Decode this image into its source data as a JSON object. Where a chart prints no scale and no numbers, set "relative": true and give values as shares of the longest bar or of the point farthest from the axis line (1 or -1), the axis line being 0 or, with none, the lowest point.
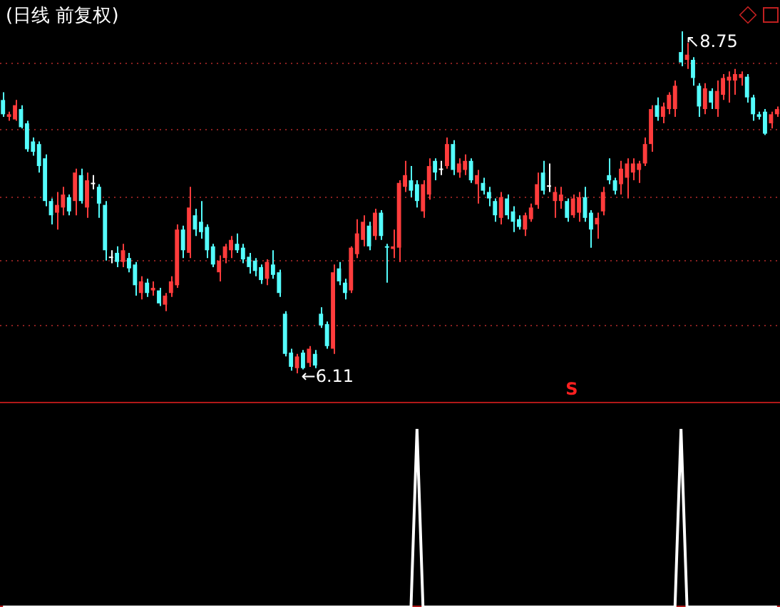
{
  "chart_data": [
    {
      "type": "candlestick",
      "title": "(日线 前复权)",
      "categories": [
        null,
        null,
        null,
        null,
        null,
        null,
        null,
        null,
        null,
        null,
        null,
        null,
        null,
        null,
        null,
        null,
        null,
        null,
        null,
        null,
        null,
        null,
        null,
        null,
        null,
        null,
        null,
        null,
        null,
        null,
        null,
        null,
        null,
        null,
        null,
        null,
        null,
        null,
        null,
        null,
        null,
        null,
        null,
        null,
        null,
        null,
        null,
        null,
        null,
        null,
        null,
        null,
        null,
        null,
        null,
        null,
        null,
        null,
        null,
        null,
        null,
        null,
        null,
        null,
        null,
        null,
        null,
        null,
        null,
        null,
        null,
        null,
        null,
        null,
        null,
        null,
        null,
        null,
        null,
        null,
        null,
        null,
        null,
        null,
        null,
        null,
        null,
        null,
        null,
        null,
        null,
        null,
        null,
        null,
        null,
        null,
        null,
        null,
        null,
        null,
        null,
        null,
        null,
        null,
        null,
        null,
        null,
        null,
        null,
        null,
        null,
        null,
        null,
        null,
        null,
        null,
        null,
        null,
        null,
        null,
        null,
        null,
        null,
        null,
        null,
        null,
        null,
        null,
        null,
        null
      ],
      "ohlc": [
        [
          8.22,
          8.28,
          8.09,
          8.11
        ],
        [
          8.09,
          8.13,
          8.06,
          8.11
        ],
        [
          8.07,
          8.22,
          8.06,
          8.18
        ],
        [
          8.15,
          8.18,
          8.0,
          8.01
        ],
        [
          8.04,
          8.06,
          7.82,
          7.84
        ],
        [
          7.9,
          7.93,
          7.79,
          7.82
        ],
        [
          7.88,
          7.9,
          7.66,
          7.71
        ],
        [
          7.77,
          7.8,
          7.4,
          7.44
        ],
        [
          7.44,
          7.46,
          7.26,
          7.33
        ],
        [
          7.35,
          7.51,
          7.22,
          7.41
        ],
        [
          7.39,
          7.55,
          7.33,
          7.49
        ],
        [
          7.47,
          7.49,
          7.33,
          7.36
        ],
        [
          7.44,
          7.69,
          7.33,
          7.66
        ],
        [
          7.64,
          7.69,
          7.42,
          7.44
        ],
        [
          7.39,
          7.66,
          7.31,
          7.6
        ],
        [
          7.57,
          7.64,
          7.53,
          7.57
        ],
        [
          7.55,
          7.57,
          7.31,
          7.42
        ],
        [
          7.41,
          7.44,
          6.98,
          7.06
        ],
        [
          7.0,
          7.06,
          6.96,
          7.0
        ],
        [
          7.04,
          7.09,
          6.93,
          6.97
        ],
        [
          6.97,
          7.11,
          6.93,
          7.06
        ],
        [
          7.0,
          7.04,
          6.89,
          6.92
        ],
        [
          6.95,
          6.97,
          6.71,
          6.79
        ],
        [
          6.73,
          6.86,
          6.68,
          6.82
        ],
        [
          6.81,
          6.84,
          6.7,
          6.73
        ],
        [
          6.75,
          6.82,
          6.71,
          6.77
        ],
        [
          6.75,
          6.77,
          6.63,
          6.65
        ],
        [
          6.64,
          6.73,
          6.59,
          6.71
        ],
        [
          6.73,
          6.86,
          6.7,
          6.82
        ],
        [
          6.79,
          7.26,
          6.77,
          7.22
        ],
        [
          7.22,
          7.25,
          7.0,
          7.06
        ],
        [
          7.04,
          7.55,
          7.0,
          7.39
        ],
        [
          7.33,
          7.38,
          7.17,
          7.22
        ],
        [
          7.28,
          7.44,
          7.15,
          7.2
        ],
        [
          7.24,
          7.26,
          7.0,
          7.06
        ],
        [
          7.09,
          7.11,
          6.93,
          6.95
        ],
        [
          6.89,
          7.02,
          6.82,
          6.98
        ],
        [
          7.0,
          7.11,
          6.96,
          7.09
        ],
        [
          7.06,
          7.17,
          7.0,
          7.14
        ],
        [
          7.11,
          7.19,
          7.04,
          7.06
        ],
        [
          7.08,
          7.11,
          6.96,
          6.99
        ],
        [
          7.01,
          7.04,
          6.88,
          6.93
        ],
        [
          6.98,
          7.0,
          6.86,
          6.9
        ],
        [
          6.93,
          6.95,
          6.8,
          6.83
        ],
        [
          6.84,
          6.99,
          6.79,
          6.97
        ],
        [
          6.95,
          7.06,
          6.84,
          6.87
        ],
        [
          6.89,
          6.91,
          6.7,
          6.73
        ],
        [
          6.57,
          6.59,
          6.24,
          6.26
        ],
        [
          6.27,
          6.3,
          6.13,
          6.16
        ],
        [
          6.15,
          6.26,
          6.11,
          6.24
        ],
        [
          6.27,
          6.29,
          6.14,
          6.15
        ],
        [
          6.19,
          6.32,
          6.16,
          6.3
        ],
        [
          6.26,
          6.29,
          6.15,
          6.17
        ],
        [
          6.57,
          6.62,
          6.46,
          6.48
        ],
        [
          6.49,
          6.51,
          6.3,
          6.32
        ],
        [
          6.3,
          6.95,
          6.26,
          6.89
        ],
        [
          6.92,
          6.97,
          6.79,
          6.82
        ],
        [
          6.81,
          6.84,
          6.68,
          6.73
        ],
        [
          6.75,
          7.09,
          6.73,
          7.08
        ],
        [
          7.03,
          7.3,
          7.0,
          7.19
        ],
        [
          7.14,
          7.33,
          7.09,
          7.28
        ],
        [
          7.25,
          7.28,
          7.06,
          7.09
        ],
        [
          7.17,
          7.38,
          7.14,
          7.35
        ],
        [
          7.35,
          7.37,
          7.14,
          7.17
        ],
        [
          7.09,
          7.11,
          6.81,
          7.08
        ],
        [
          7.07,
          7.22,
          7.0,
          7.09
        ],
        [
          7.08,
          7.6,
          6.97,
          7.58
        ],
        [
          7.55,
          7.75,
          7.51,
          7.64
        ],
        [
          7.6,
          7.71,
          7.47,
          7.52
        ],
        [
          7.57,
          7.6,
          7.39,
          7.44
        ],
        [
          7.36,
          7.6,
          7.31,
          7.57
        ],
        [
          7.49,
          7.77,
          7.45,
          7.71
        ],
        [
          7.75,
          7.77,
          7.6,
          7.66
        ],
        [
          7.68,
          7.75,
          7.64,
          7.68
        ],
        [
          7.71,
          7.93,
          7.69,
          7.88
        ],
        [
          7.88,
          7.91,
          7.64,
          7.68
        ],
        [
          7.66,
          7.77,
          7.62,
          7.73
        ],
        [
          7.68,
          7.8,
          7.64,
          7.75
        ],
        [
          7.75,
          7.77,
          7.58,
          7.6
        ],
        [
          7.57,
          7.68,
          7.42,
          7.64
        ],
        [
          7.58,
          7.62,
          7.49,
          7.52
        ],
        [
          7.51,
          7.55,
          7.4,
          7.46
        ],
        [
          7.44,
          7.46,
          7.28,
          7.33
        ],
        [
          7.31,
          7.51,
          7.26,
          7.47
        ],
        [
          7.46,
          7.49,
          7.3,
          7.33
        ],
        [
          7.36,
          7.4,
          7.2,
          7.28
        ],
        [
          7.3,
          7.33,
          7.22,
          7.24
        ],
        [
          7.22,
          7.35,
          7.17,
          7.33
        ],
        [
          7.3,
          7.42,
          7.28,
          7.39
        ],
        [
          7.41,
          7.66,
          7.38,
          7.57
        ],
        [
          7.66,
          7.75,
          7.49,
          7.52
        ],
        [
          7.55,
          7.73,
          7.51,
          7.55
        ],
        [
          7.44,
          7.55,
          7.31,
          7.51
        ],
        [
          7.44,
          7.55,
          7.38,
          7.49
        ],
        [
          7.44,
          7.46,
          7.28,
          7.31
        ],
        [
          7.33,
          7.49,
          7.31,
          7.46
        ],
        [
          7.35,
          7.51,
          7.28,
          7.47
        ],
        [
          7.47,
          7.55,
          7.28,
          7.31
        ],
        [
          7.35,
          7.37,
          7.08,
          7.22
        ],
        [
          7.26,
          7.35,
          7.15,
          7.31
        ],
        [
          7.36,
          7.55,
          7.33,
          7.51
        ],
        [
          7.64,
          7.77,
          7.57,
          7.6
        ],
        [
          7.6,
          7.62,
          7.49,
          7.52
        ],
        [
          7.57,
          7.75,
          7.49,
          7.69
        ],
        [
          7.62,
          7.77,
          7.46,
          7.73
        ],
        [
          7.66,
          7.77,
          7.6,
          7.73
        ],
        [
          7.68,
          7.75,
          7.58,
          7.73
        ],
        [
          7.73,
          7.93,
          7.71,
          7.88
        ],
        [
          7.88,
          8.18,
          7.82,
          8.15
        ],
        [
          8.18,
          8.24,
          8.06,
          8.09
        ],
        [
          8.09,
          8.2,
          8.04,
          8.17
        ],
        [
          8.15,
          8.28,
          8.11,
          8.26
        ],
        [
          8.15,
          8.37,
          8.09,
          8.33
        ],
        [
          8.59,
          8.75,
          8.48,
          8.51
        ],
        [
          8.53,
          8.66,
          8.46,
          8.57
        ],
        [
          8.53,
          8.55,
          8.33,
          8.39
        ],
        [
          8.33,
          8.35,
          8.09,
          8.17
        ],
        [
          8.15,
          8.35,
          8.11,
          8.31
        ],
        [
          8.29,
          8.31,
          8.15,
          8.2
        ],
        [
          8.15,
          8.37,
          8.09,
          8.29
        ],
        [
          8.26,
          8.42,
          8.22,
          8.39
        ],
        [
          8.37,
          8.44,
          8.2,
          8.4
        ],
        [
          8.37,
          8.46,
          8.26,
          8.42
        ],
        [
          8.39,
          8.44,
          8.33,
          8.42
        ],
        [
          8.4,
          8.42,
          8.2,
          8.24
        ],
        [
          8.24,
          8.26,
          8.06,
          8.11
        ],
        [
          8.11,
          8.13,
          8.07,
          8.09
        ],
        [
          8.13,
          8.15,
          7.95,
          7.96
        ],
        [
          8.04,
          8.13,
          8.0,
          8.11
        ],
        [
          8.11,
          8.17,
          8.09,
          8.15
        ]
      ],
      "colors": [
        "#54fcfc",
        "#ff3c3c",
        "#ff3c3c",
        "#54fcfc",
        "#54fcfc",
        "#54fcfc",
        "#54fcfc",
        "#54fcfc",
        "#54fcfc",
        "#ff3c3c",
        "#ff3c3c",
        "#54fcfc",
        "#ff3c3c",
        "#54fcfc",
        "#ff3c3c",
        "#ffffff",
        "#54fcfc",
        "#54fcfc",
        "#ffffff",
        "#54fcfc",
        "#ff3c3c",
        "#54fcfc",
        "#54fcfc",
        "#ff3c3c",
        "#54fcfc",
        "#ff3c3c",
        "#54fcfc",
        "#ff3c3c",
        "#ff3c3c",
        "#ff3c3c",
        "#54fcfc",
        "#ff3c3c",
        "#54fcfc",
        "#54fcfc",
        "#54fcfc",
        "#54fcfc",
        "#ff3c3c",
        "#ff3c3c",
        "#ff3c3c",
        "#54fcfc",
        "#54fcfc",
        "#54fcfc",
        "#54fcfc",
        "#54fcfc",
        "#ff3c3c",
        "#54fcfc",
        "#54fcfc",
        "#54fcfc",
        "#54fcfc",
        "#ff3c3c",
        "#54fcfc",
        "#ff3c3c",
        "#54fcfc",
        "#54fcfc",
        "#54fcfc",
        "#ff3c3c",
        "#54fcfc",
        "#54fcfc",
        "#ff3c3c",
        "#ff3c3c",
        "#ff3c3c",
        "#54fcfc",
        "#ff3c3c",
        "#54fcfc",
        "#54fcfc",
        "#ff3c3c",
        "#ff3c3c",
        "#ff3c3c",
        "#54fcfc",
        "#54fcfc",
        "#ff3c3c",
        "#ff3c3c",
        "#54fcfc",
        "#ffffff",
        "#ff3c3c",
        "#54fcfc",
        "#ff3c3c",
        "#ff3c3c",
        "#54fcfc",
        "#ff3c3c",
        "#54fcfc",
        "#54fcfc",
        "#54fcfc",
        "#ff3c3c",
        "#54fcfc",
        "#54fcfc",
        "#54fcfc",
        "#ff3c3c",
        "#ff3c3c",
        "#ff3c3c",
        "#54fcfc",
        "#ffffff",
        "#ff3c3c",
        "#ff3c3c",
        "#54fcfc",
        "#ff3c3c",
        "#ff3c3c",
        "#54fcfc",
        "#54fcfc",
        "#ff3c3c",
        "#ff3c3c",
        "#54fcfc",
        "#54fcfc",
        "#ff3c3c",
        "#ff3c3c",
        "#ff3c3c",
        "#ff3c3c",
        "#ff3c3c",
        "#ff3c3c",
        "#54fcfc",
        "#ff3c3c",
        "#ff3c3c",
        "#ff3c3c",
        "#54fcfc",
        "#ff3c3c",
        "#54fcfc",
        "#54fcfc",
        "#ff3c3c",
        "#54fcfc",
        "#ff3c3c",
        "#ff3c3c",
        "#ff3c3c",
        "#ff3c3c",
        "#ff3c3c",
        "#54fcfc",
        "#54fcfc",
        "#54fcfc",
        "#54fcfc",
        "#ff3c3c",
        "#ff3c3c"
      ],
      "yticks": [
        {
          "value": 6.48,
          "label": null
        },
        {
          "value": 6.98,
          "label": null
        },
        {
          "value": 7.47,
          "label": null
        },
        {
          "value": 7.99,
          "label": null
        },
        {
          "value": 8.5,
          "label": null
        }
      ],
      "grid": "y",
      "annotations": [
        "↖8.75",
        "←6.11",
        "S"
      ]
    },
    {
      "type": "line",
      "relative": true,
      "categories": [
        null,
        null,
        null,
        null,
        null,
        null,
        null,
        null,
        null,
        null,
        null,
        null,
        null,
        null,
        null,
        null,
        null,
        null,
        null,
        null,
        null,
        null,
        null,
        null,
        null,
        null,
        null,
        null,
        null,
        null,
        null,
        null,
        null,
        null,
        null,
        null,
        null,
        null,
        null,
        null,
        null,
        null,
        null,
        null,
        null,
        null,
        null,
        null,
        null,
        null,
        null,
        null,
        null,
        null,
        null,
        null,
        null,
        null,
        null,
        null,
        null,
        null,
        null,
        null,
        null,
        null,
        null,
        null,
        null,
        null,
        null,
        null,
        null,
        null,
        null,
        null,
        null,
        null,
        null,
        null,
        null,
        null,
        null,
        null,
        null,
        null,
        null,
        null,
        null,
        null,
        null,
        null,
        null,
        null,
        null,
        null,
        null,
        null,
        null,
        null,
        null,
        null,
        null,
        null,
        null,
        null,
        null,
        null,
        null,
        null,
        null,
        null,
        null,
        null,
        null,
        null,
        null,
        null,
        null,
        null,
        null,
        null,
        null,
        null,
        null,
        null,
        null,
        null,
        null,
        null
      ],
      "series": [
        {
          "color": "#ffffff",
          "values": [
            0,
            0,
            0,
            0,
            0,
            0,
            0,
            0,
            0,
            0,
            0,
            0,
            0,
            0,
            0,
            0,
            0,
            0,
            0,
            0,
            0,
            0,
            0,
            0,
            0,
            0,
            0,
            0,
            0,
            0,
            0,
            0,
            0,
            0,
            0,
            0,
            0,
            0,
            0,
            0,
            0,
            0,
            0,
            0,
            0,
            0,
            0,
            0,
            0,
            0,
            0,
            0,
            0,
            0,
            0,
            0,
            0,
            0,
            0,
            0,
            0,
            0,
            0,
            0,
            0,
            0,
            0,
            0,
            0,
            1,
            0,
            0,
            0,
            0,
            0,
            0,
            0,
            0,
            0,
            0,
            0,
            0,
            0,
            0,
            0,
            0,
            0,
            0,
            0,
            0,
            0,
            0,
            0,
            0,
            0,
            0,
            0,
            0,
            0,
            0,
            0,
            0,
            0,
            0,
            0,
            0,
            0,
            0,
            0,
            0,
            0,
            0,
            0,
            1,
            0,
            0,
            0,
            0,
            0,
            0,
            0,
            0,
            0,
            0,
            0,
            0,
            0,
            0,
            0,
            0
          ]
        }
      ],
      "marker": "none"
    }
  ]
}
